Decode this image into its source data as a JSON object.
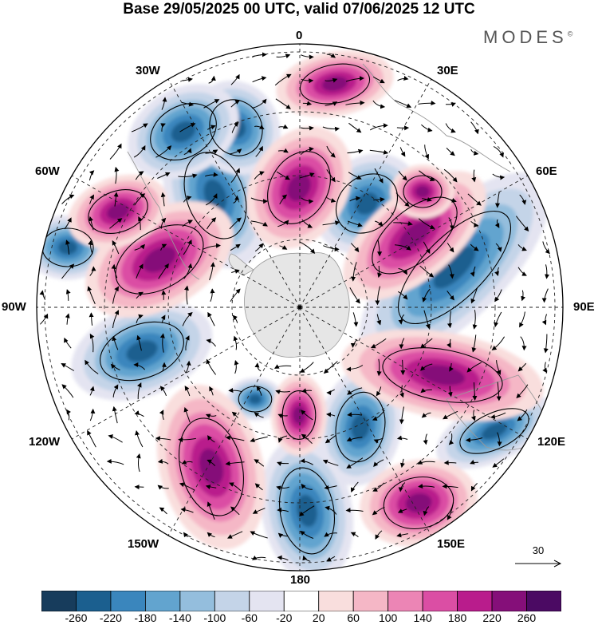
{
  "title": "Base 29/05/2025 00 UTC, valid 07/06/2025 12 UTC",
  "brand": {
    "name": "MODES",
    "mark": "©"
  },
  "map": {
    "projection": "south polar stereographic",
    "longitude_labels": [
      "0",
      "30E",
      "60E",
      "90E",
      "120E",
      "150E",
      "180",
      "150W",
      "120W",
      "90W",
      "60W",
      "30W"
    ],
    "field": "anomaly",
    "vector_reference": {
      "label": "30"
    }
  },
  "colorbar": {
    "tick_labels": [
      "-260",
      "-220",
      "-180",
      "-140",
      "-100",
      "-60",
      "-20",
      "20",
      "60",
      "100",
      "140",
      "180",
      "220",
      "260"
    ],
    "colors": [
      "#173c5c",
      "#1b5f8f",
      "#3a86bd",
      "#62a4cf",
      "#94bedd",
      "#c4d4e8",
      "#e4e4f1",
      "#ffffff",
      "#f9dedd",
      "#f5b7c6",
      "#ec85b5",
      "#db4ea4",
      "#b91c8c",
      "#850f79",
      "#4b0a63"
    ]
  },
  "colors": {
    "land": "#e6e6e6",
    "coast": "#9a9a9a",
    "grid": "#222222"
  }
}
